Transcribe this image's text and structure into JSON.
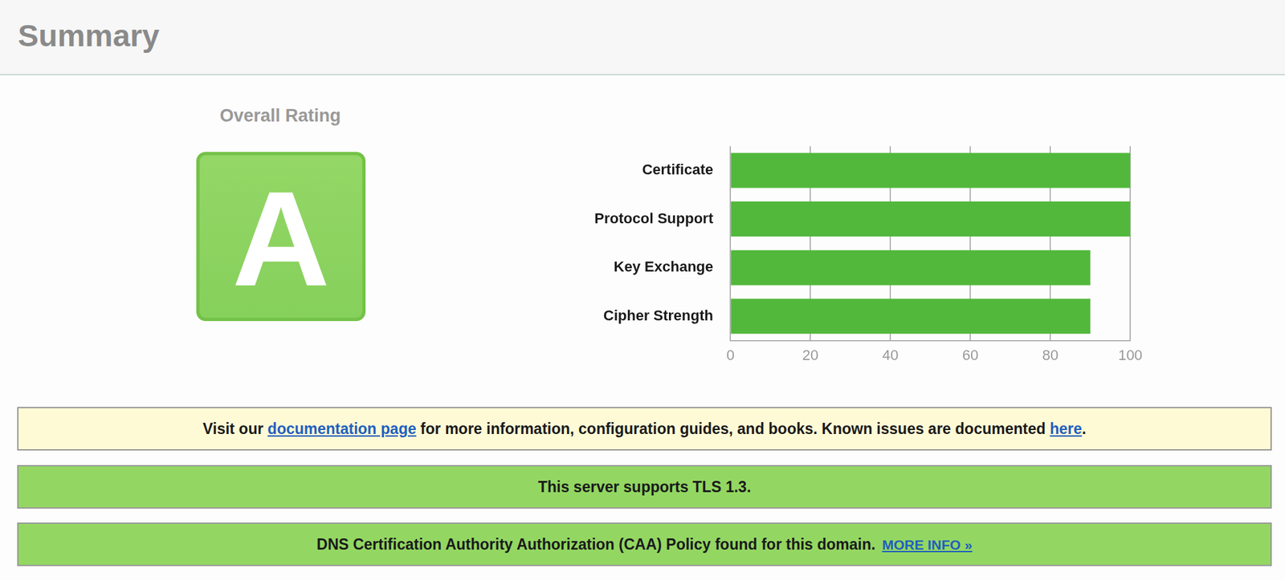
{
  "header": {
    "title": "Summary"
  },
  "rating": {
    "label": "Overall Rating",
    "grade": "A",
    "color": "#86d05c"
  },
  "chart_data": {
    "type": "bar",
    "orientation": "horizontal",
    "categories": [
      "Certificate",
      "Protocol Support",
      "Key Exchange",
      "Cipher Strength"
    ],
    "values": [
      100,
      100,
      90,
      90
    ],
    "color": "#52b83c",
    "xlim": [
      0,
      100
    ],
    "xticks": [
      0,
      20,
      40,
      60,
      80,
      100
    ],
    "grid": true
  },
  "notices": [
    {
      "color": "#fffad6",
      "parts": [
        {
          "text": "Visit our "
        },
        {
          "text": "documentation page",
          "link": true
        },
        {
          "text": " for more information, configuration guides, and books. Known issues are documented "
        },
        {
          "text": "here",
          "link": true
        },
        {
          "text": "."
        }
      ]
    },
    {
      "color": "#93d762",
      "parts": [
        {
          "text": "This server supports TLS 1.3."
        }
      ]
    },
    {
      "color": "#93d762",
      "parts": [
        {
          "text": "DNS Certification Authority Authorization (CAA) Policy found for this domain."
        },
        {
          "text": "MORE INFO »",
          "link": true
        }
      ]
    }
  ]
}
